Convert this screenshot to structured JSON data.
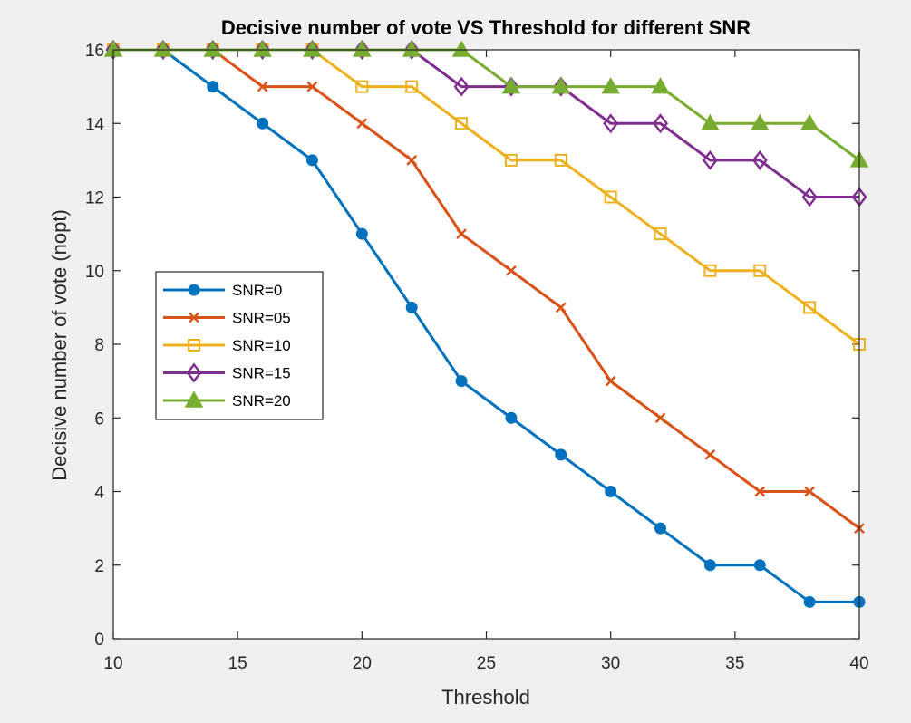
{
  "chart_data": {
    "type": "line",
    "title": "Decisive number of vote VS Threshold for different SNR",
    "xlabel": "Threshold",
    "ylabel": "Decisive number of vote (nopt)",
    "xlim": [
      10,
      40
    ],
    "ylim": [
      0,
      16
    ],
    "xticks": [
      "10",
      "15",
      "20",
      "25",
      "30",
      "35",
      "40"
    ],
    "yticks": [
      "0",
      "2",
      "4",
      "6",
      "8",
      "10",
      "12",
      "14",
      "16"
    ],
    "legend_position": "left",
    "grid": false,
    "x": [
      10,
      12,
      14,
      16,
      18,
      20,
      22,
      24,
      26,
      28,
      30,
      32,
      34,
      36,
      38,
      40
    ],
    "series": [
      {
        "name": "SNR=0",
        "color": "#0072BD",
        "marker": "circle",
        "values": [
          16,
          16,
          15,
          14,
          13,
          11,
          9,
          7,
          6,
          5,
          4,
          3,
          2,
          2,
          1,
          1
        ]
      },
      {
        "name": "SNR=05",
        "color": "#D95319",
        "marker": "x",
        "values": [
          16,
          16,
          16,
          15,
          15,
          14,
          13,
          11,
          10,
          9,
          7,
          6,
          5,
          4,
          4,
          3
        ]
      },
      {
        "name": "SNR=10",
        "color": "#EDB120",
        "marker": "square",
        "values": [
          16,
          16,
          16,
          16,
          16,
          15,
          15,
          14,
          13,
          13,
          12,
          11,
          10,
          10,
          9,
          8
        ]
      },
      {
        "name": "SNR=15",
        "color": "#7E2F8E",
        "marker": "diamond",
        "values": [
          16,
          16,
          16,
          16,
          16,
          16,
          16,
          15,
          15,
          15,
          14,
          14,
          13,
          13,
          12,
          12
        ]
      },
      {
        "name": "SNR=20",
        "color": "#77AC30",
        "marker": "triangle",
        "values": [
          16,
          16,
          16,
          16,
          16,
          16,
          16,
          16,
          15,
          15,
          15,
          15,
          14,
          14,
          14,
          13
        ]
      }
    ]
  }
}
